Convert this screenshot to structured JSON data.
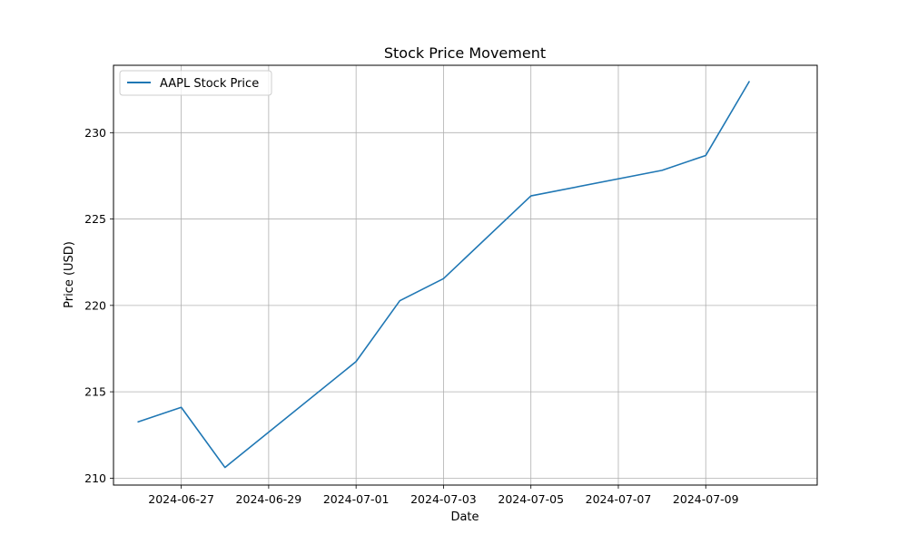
{
  "chart_data": {
    "type": "line",
    "title": "Stock Price Movement",
    "xlabel": "Date",
    "ylabel": "Price (USD)",
    "x_ticks": [
      "2024-06-27",
      "2024-06-29",
      "2024-07-01",
      "2024-07-03",
      "2024-07-05",
      "2024-07-07",
      "2024-07-09"
    ],
    "y_ticks": [
      210,
      215,
      220,
      225,
      230
    ],
    "xlim": [
      "2024-06-25",
      "2024-07-11"
    ],
    "ylim": [
      209.6,
      233.9
    ],
    "grid": true,
    "legend_position": "top-left",
    "series": [
      {
        "name": "AAPL Stock Price",
        "color": "#1f77b4",
        "x": [
          "2024-06-26",
          "2024-06-27",
          "2024-06-28",
          "2024-07-01",
          "2024-07-02",
          "2024-07-03",
          "2024-07-05",
          "2024-07-08",
          "2024-07-09",
          "2024-07-10"
        ],
        "y": [
          213.25,
          214.1,
          210.62,
          216.75,
          220.27,
          221.55,
          226.34,
          227.82,
          228.68,
          232.98
        ]
      }
    ]
  }
}
